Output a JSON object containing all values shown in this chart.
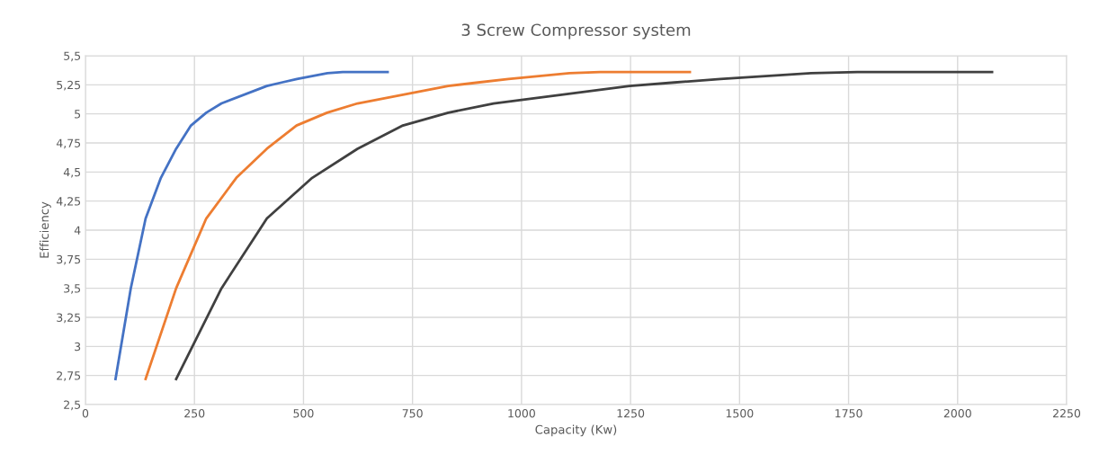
{
  "chart_data": {
    "type": "line",
    "title": "3 Screw Compressor system",
    "xlabel": "Capacity (Kw)",
    "ylabel": "Efficiency",
    "series": [
      {
        "color": "#4472c4",
        "x": [
          69,
          104,
          138,
          173,
          208,
          242,
          277,
          312,
          416,
          450,
          485,
          555,
          590,
          693
        ],
        "values": [
          2.72,
          3.5,
          4.1,
          4.45,
          4.7,
          4.9,
          5.01,
          5.09,
          5.24,
          5.27,
          5.3,
          5.35,
          5.36,
          5.36
        ]
      },
      {
        "color": "#ed7d31",
        "x": [
          138,
          208,
          277,
          346,
          416,
          484,
          554,
          624,
          832,
          900,
          970,
          1110,
          1180,
          1386
        ],
        "values": [
          2.72,
          3.5,
          4.1,
          4.45,
          4.7,
          4.9,
          5.01,
          5.09,
          5.24,
          5.27,
          5.3,
          5.35,
          5.36,
          5.36
        ]
      },
      {
        "color": "#404040",
        "x": [
          208,
          312,
          416,
          520,
          624,
          728,
          832,
          936,
          1248,
          1350,
          1456,
          1664,
          1770,
          2079
        ],
        "values": [
          2.72,
          3.5,
          4.1,
          4.45,
          4.7,
          4.9,
          5.01,
          5.09,
          5.24,
          5.27,
          5.3,
          5.35,
          5.36,
          5.36
        ]
      }
    ],
    "xlim": [
      0,
      2250
    ],
    "xticks": [
      0,
      250,
      500,
      750,
      1000,
      1250,
      1500,
      1750,
      2000,
      2250
    ],
    "ylim": [
      2.5,
      5.5
    ],
    "yticks": [
      {
        "value": 2.5,
        "label": "2,5"
      },
      {
        "value": 2.75,
        "label": "2,75"
      },
      {
        "value": 3,
        "label": "3"
      },
      {
        "value": 3.25,
        "label": "3,25"
      },
      {
        "value": 3.5,
        "label": "3,5"
      },
      {
        "value": 3.75,
        "label": "3,75"
      },
      {
        "value": 4,
        "label": "4"
      },
      {
        "value": 4.25,
        "label": "4,25"
      },
      {
        "value": 4.5,
        "label": "4,5"
      },
      {
        "value": 4.75,
        "label": "4,75"
      },
      {
        "value": 5,
        "label": "5"
      },
      {
        "value": 5.25,
        "label": "5,25"
      },
      {
        "value": 5.5,
        "label": "5,5"
      }
    ],
    "grid": true,
    "marker": "none",
    "line_style": "solid"
  }
}
